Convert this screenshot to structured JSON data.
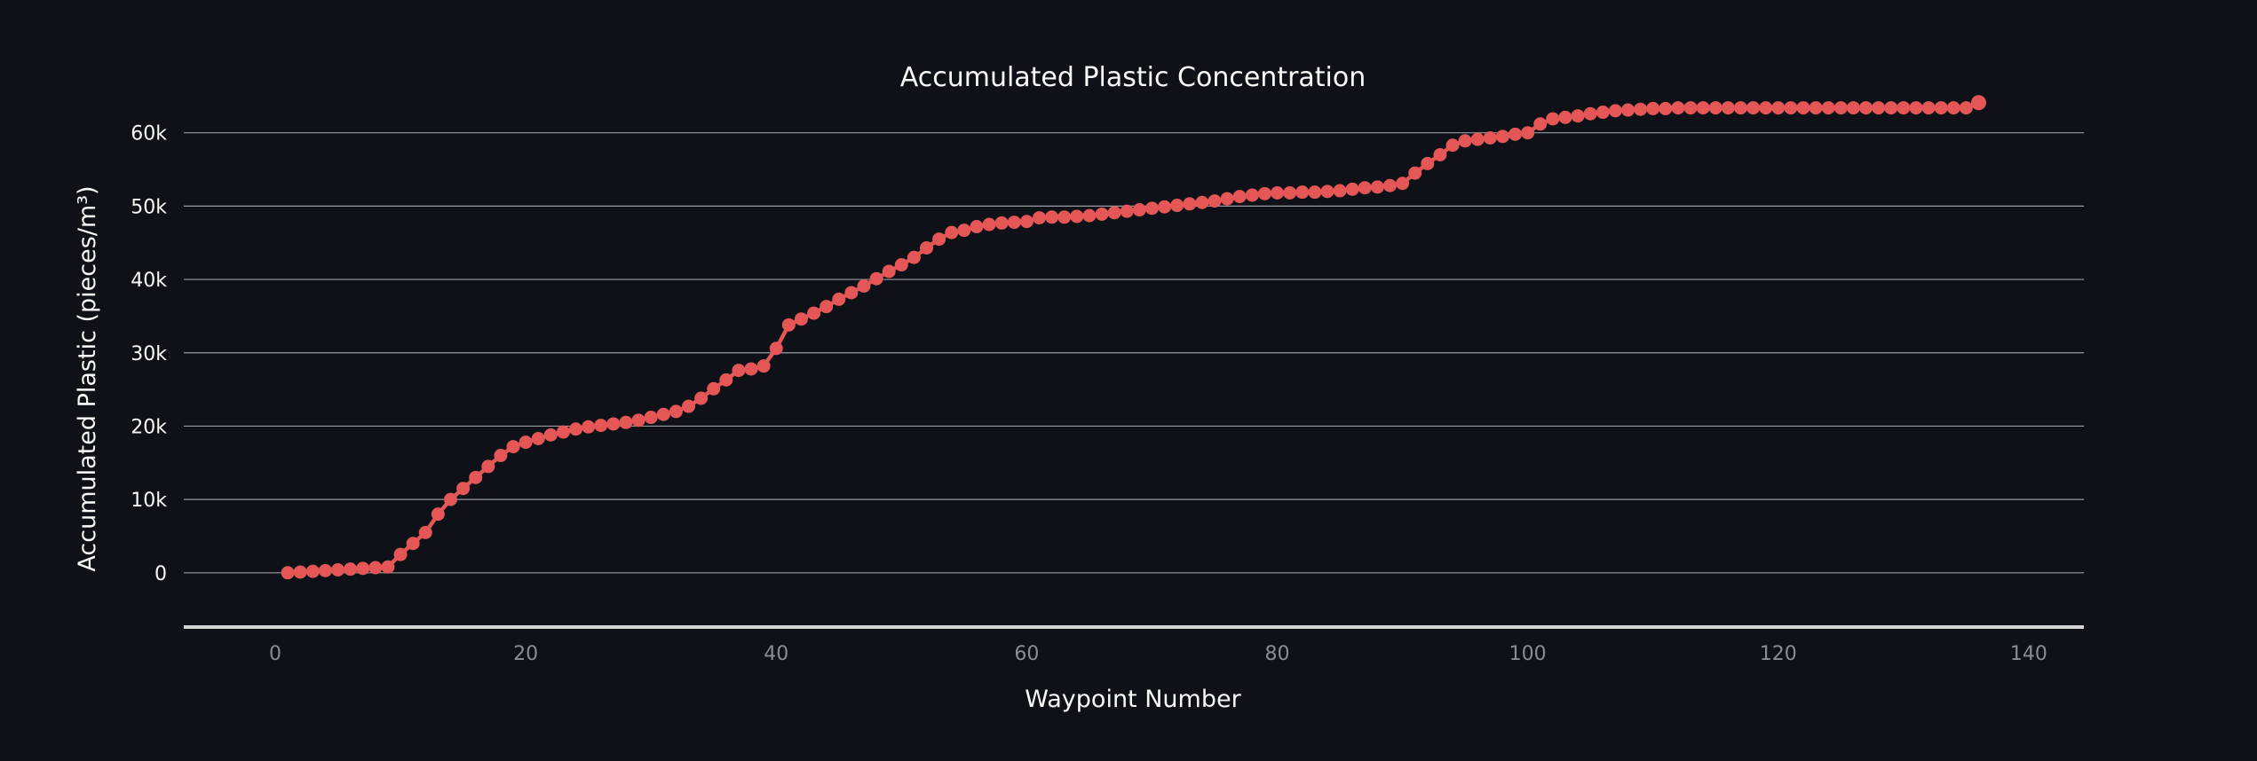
{
  "chart_data": {
    "type": "line",
    "title": "Accumulated Plastic Concentration",
    "xlabel": "Waypoint Number",
    "ylabel": "Accumulated Plastic (pieces/m³)",
    "xlim": [
      -7.3,
      144.4
    ],
    "ylim": [
      -7400,
      64800
    ],
    "x_ticks": [
      0,
      20,
      40,
      60,
      80,
      100,
      120,
      140
    ],
    "x_tick_labels": [
      "0",
      "20",
      "40",
      "60",
      "80",
      "100",
      "120",
      "140"
    ],
    "y_ticks": [
      0,
      10000,
      20000,
      30000,
      40000,
      50000,
      60000
    ],
    "y_tick_labels": [
      "0",
      "10k",
      "20k",
      "30k",
      "40k",
      "50k",
      "60k"
    ],
    "grid": true,
    "legend": false,
    "colors": {
      "background": "#0e1117",
      "series": "#e45756",
      "grid": "#9a9ca1",
      "axis": "#d6d6d9"
    },
    "series": [
      {
        "marker": "circle",
        "x": [
          1,
          2,
          3,
          4,
          5,
          6,
          7,
          8,
          9,
          10,
          11,
          12,
          13,
          14,
          15,
          16,
          17,
          18,
          19,
          20,
          21,
          22,
          23,
          24,
          25,
          26,
          27,
          28,
          29,
          30,
          31,
          32,
          33,
          34,
          35,
          36,
          37,
          38,
          39,
          40,
          41,
          42,
          43,
          44,
          45,
          46,
          47,
          48,
          49,
          50,
          51,
          52,
          53,
          54,
          55,
          56,
          57,
          58,
          59,
          60,
          61,
          62,
          63,
          64,
          65,
          66,
          67,
          68,
          69,
          70,
          71,
          72,
          73,
          74,
          75,
          76,
          77,
          78,
          79,
          80,
          81,
          82,
          83,
          84,
          85,
          86,
          87,
          88,
          89,
          90,
          91,
          92,
          93,
          94,
          95,
          96,
          97,
          98,
          99,
          100,
          101,
          102,
          103,
          104,
          105,
          106,
          107,
          108,
          109,
          110,
          111,
          112,
          113,
          114,
          115,
          116,
          117,
          118,
          119,
          120,
          121,
          122,
          123,
          124,
          125,
          126,
          127,
          128,
          129,
          130,
          131,
          132,
          133,
          134,
          135,
          136
        ],
        "y": [
          0,
          100,
          200,
          300,
          400,
          500,
          600,
          700,
          800,
          2500,
          4000,
          5500,
          8000,
          10000,
          11500,
          13000,
          14500,
          16000,
          17200,
          17800,
          18300,
          18800,
          19200,
          19600,
          19900,
          20100,
          20300,
          20500,
          20800,
          21200,
          21600,
          22000,
          22700,
          23800,
          25100,
          26300,
          27600,
          27800,
          28200,
          30600,
          33800,
          34600,
          35400,
          36300,
          37300,
          38200,
          39100,
          40100,
          41100,
          42000,
          43000,
          44300,
          45500,
          46400,
          46700,
          47200,
          47500,
          47700,
          47800,
          47900,
          48400,
          48500,
          48500,
          48600,
          48700,
          48900,
          49100,
          49300,
          49500,
          49700,
          49900,
          50100,
          50300,
          50500,
          50700,
          51000,
          51300,
          51500,
          51700,
          51800,
          51800,
          51900,
          51900,
          52000,
          52100,
          52300,
          52500,
          52600,
          52800,
          53100,
          54500,
          55800,
          57000,
          58300,
          58900,
          59100,
          59300,
          59500,
          59800,
          60000,
          61200,
          61900,
          62100,
          62300,
          62600,
          62800,
          63000,
          63100,
          63200,
          63300,
          63300,
          63400,
          63400,
          63400,
          63400,
          63400,
          63400,
          63400,
          63400,
          63400,
          63400,
          63400,
          63400,
          63400,
          63400,
          63400,
          63400,
          63400,
          63400,
          63400,
          63400,
          63400,
          63400,
          63400,
          63400,
          64100
        ]
      }
    ]
  }
}
